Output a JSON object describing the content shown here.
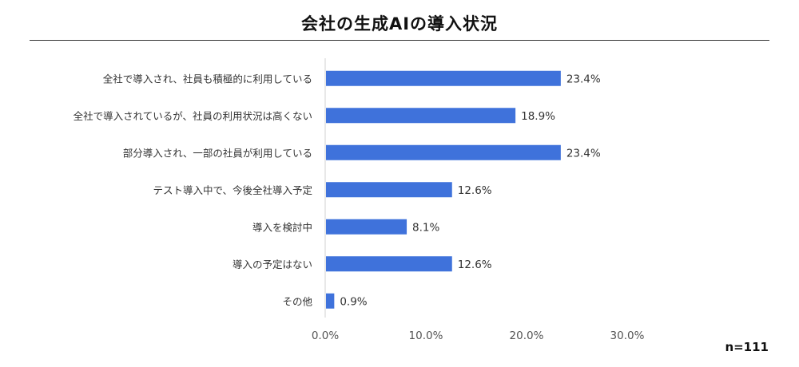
{
  "title": "会社の生成AIの導入状況",
  "note": "n=111",
  "colors": {
    "bar": "#3f72db",
    "axis": "#d0d0d0",
    "text": "#333333"
  },
  "chart_data": {
    "type": "bar",
    "orientation": "horizontal",
    "categories": [
      "全社で導入され、社員も積極的に利用している",
      "全社で導入されているが、社員の利用状況は高くない",
      "部分導入され、一部の社員が利用している",
      "テスト導入中で、今後全社導入予定",
      "導入を検討中",
      "導入の予定はない",
      "その他"
    ],
    "values": [
      23.4,
      18.9,
      23.4,
      12.6,
      8.1,
      12.6,
      0.9
    ],
    "value_labels": [
      "23.4%",
      "18.9%",
      "23.4%",
      "12.6%",
      "8.1%",
      "12.6%",
      "0.9%"
    ],
    "xlim": [
      0,
      30
    ],
    "xticks": [
      "0.0%",
      "10.0%",
      "20.0%",
      "30.0%"
    ],
    "xtick_values": [
      0,
      10,
      20,
      30
    ],
    "grid": false,
    "legend": "none"
  }
}
